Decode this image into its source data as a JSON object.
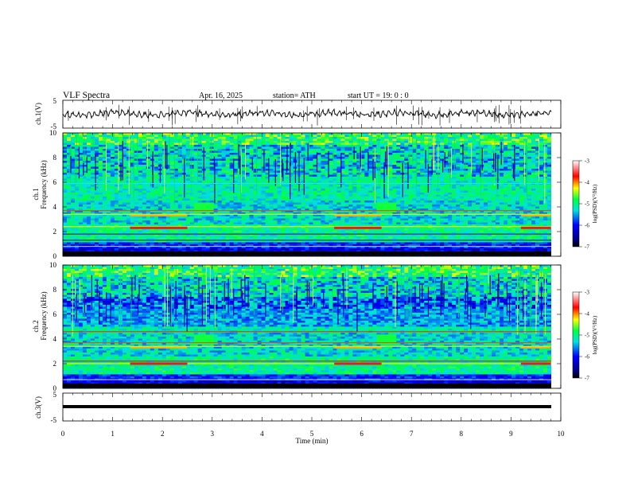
{
  "header": {
    "title": "VLF  Spectra",
    "date": "Apr. 16, 2025",
    "station": "station= ATH",
    "start": "start  UT  =    19: 0   : 0"
  },
  "chart_data": [
    {
      "type": "line",
      "name_label": "ch.1(V)",
      "ylim": [
        -5,
        5
      ],
      "yticks": [
        "5",
        "-5"
      ],
      "xlim": [
        0,
        10
      ],
      "description_values": "waveform oscillating near 0 V"
    },
    {
      "type": "heatmap",
      "ylabel_top": "ch.1",
      "ylabel": "Frequency  (kHz)",
      "ylim": [
        0,
        10
      ],
      "yticks": [
        "0",
        "2",
        "4",
        "6",
        "8",
        "10"
      ],
      "xlim": [
        0,
        10
      ],
      "colorbar": {
        "label": "log(PSD)(V²/Hz)",
        "range": [
          -7,
          -3
        ],
        "ticks": [
          "-3",
          "-4",
          "-5",
          "-6",
          "-7"
        ]
      }
    },
    {
      "type": "heatmap",
      "ylabel_top": "ch.2",
      "ylabel": "Frequency  (kHz)",
      "ylim": [
        0,
        10
      ],
      "yticks": [
        "0",
        "2",
        "4",
        "6",
        "8",
        "10"
      ],
      "xlim": [
        0,
        10
      ],
      "colorbar": {
        "label": "log(PSD)(V²/Hz)",
        "range": [
          -7,
          -3
        ],
        "ticks": [
          "-3",
          "-4",
          "-5",
          "-6",
          "-7"
        ]
      }
    },
    {
      "type": "line",
      "name_label": "ch.3(V)",
      "ylim": [
        -5,
        5
      ],
      "yticks": [
        "5",
        "-5"
      ],
      "xlim": [
        0,
        10
      ]
    }
  ],
  "xaxis": {
    "label": "Time  (min)",
    "ticks": [
      "0",
      "1",
      "2",
      "3",
      "4",
      "5",
      "6",
      "7",
      "8",
      "9",
      "10"
    ]
  },
  "colors": {
    "lowest": "#000000",
    "low": "#0000c8",
    "mid": "#00d4d4",
    "high": "#ffff00",
    "highest": "#ff0000"
  }
}
